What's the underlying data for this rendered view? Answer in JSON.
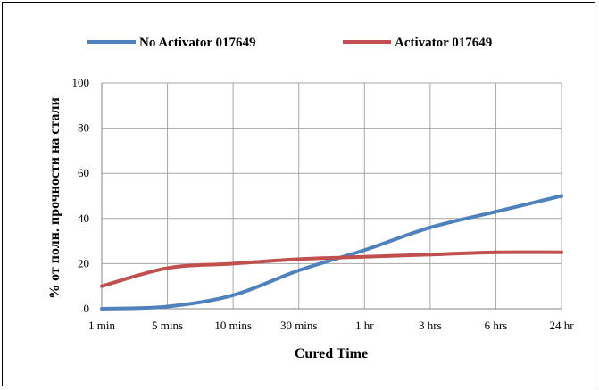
{
  "chart_data": {
    "type": "line",
    "title": "",
    "xlabel": "Cured Time",
    "ylabel": "% от полн. прочности на стали",
    "categories": [
      "1 min",
      "5 mins",
      "10 mins",
      "30 mins",
      "1 hr",
      "3 hrs",
      "6 hrs",
      "24 hr"
    ],
    "ylim": [
      0,
      100
    ],
    "yticks": [
      0,
      20,
      40,
      60,
      80,
      100
    ],
    "grid": true,
    "legend_position": "top",
    "smooth": true,
    "series": [
      {
        "name": "No Activator 017649",
        "color": "#4f81bd",
        "values": [
          0,
          1,
          6,
          17,
          26,
          36,
          43,
          50
        ]
      },
      {
        "name": "Activator 017649",
        "color": "#c0504d",
        "values": [
          10,
          18,
          20,
          22,
          23,
          24,
          25,
          25
        ]
      }
    ]
  }
}
